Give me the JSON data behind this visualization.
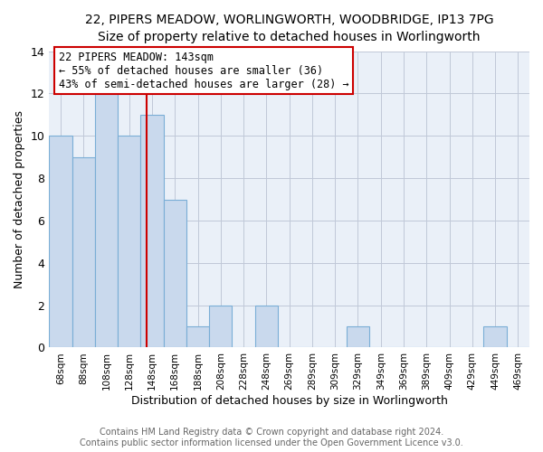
{
  "title_line1": "22, PIPERS MEADOW, WORLINGWORTH, WOODBRIDGE, IP13 7PG",
  "title_line2": "Size of property relative to detached houses in Worlingworth",
  "xlabel": "Distribution of detached houses by size in Worlingworth",
  "ylabel": "Number of detached properties",
  "footer_line1": "Contains HM Land Registry data © Crown copyright and database right 2024.",
  "footer_line2": "Contains public sector information licensed under the Open Government Licence v3.0.",
  "bar_labels": [
    "68sqm",
    "88sqm",
    "108sqm",
    "128sqm",
    "148sqm",
    "168sqm",
    "188sqm",
    "208sqm",
    "228sqm",
    "248sqm",
    "269sqm",
    "289sqm",
    "309sqm",
    "329sqm",
    "349sqm",
    "369sqm",
    "389sqm",
    "409sqm",
    "429sqm",
    "449sqm",
    "469sqm"
  ],
  "bar_values": [
    10,
    9,
    12,
    10,
    11,
    7,
    1,
    2,
    0,
    2,
    0,
    0,
    0,
    1,
    0,
    0,
    0,
    0,
    0,
    1,
    0
  ],
  "bar_color": "#c9d9ed",
  "bar_edge_color": "#7aaed6",
  "grid_color": "#c0c8d8",
  "background_color": "#eaf0f8",
  "ylim": [
    0,
    14
  ],
  "yticks": [
    0,
    2,
    4,
    6,
    8,
    10,
    12,
    14
  ],
  "property_size": 143,
  "property_label": "22 PIPERS MEADOW: 143sqm",
  "annotation_line2": "← 55% of detached houses are smaller (36)",
  "annotation_line3": "43% of semi-detached houses are larger (28) →",
  "vline_color": "#cc0000",
  "annotation_box_color": "#cc0000",
  "annotation_bg": "#ffffff",
  "vline_x_data": 3.75
}
